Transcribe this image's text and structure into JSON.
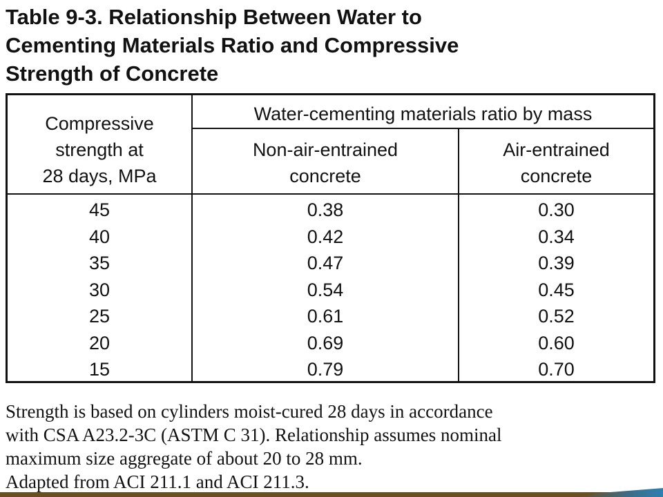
{
  "title": {
    "line1": "Table 9-3. Relationship Between Water to",
    "line2": "Cementing Materials Ratio and Compressive",
    "line3": "Strength of Concrete"
  },
  "table": {
    "col1_header": [
      "Compressive",
      "strength at",
      "28 days, MPa"
    ],
    "group_header": "Water-cementing materials ratio by mass",
    "col2_header": [
      "Non-air-entrained",
      "concrete"
    ],
    "col3_header": [
      "Air-entrained",
      "concrete"
    ],
    "rows": [
      {
        "strength": "45",
        "non_air": "0.38",
        "air": "0.30"
      },
      {
        "strength": "40",
        "non_air": "0.42",
        "air": "0.34"
      },
      {
        "strength": "35",
        "non_air": "0.47",
        "air": "0.39"
      },
      {
        "strength": "30",
        "non_air": "0.54",
        "air": "0.45"
      },
      {
        "strength": "25",
        "non_air": "0.61",
        "air": "0.52"
      },
      {
        "strength": "20",
        "non_air": "0.69",
        "air": "0.60"
      },
      {
        "strength": "15",
        "non_air": "0.79",
        "air": "0.70"
      }
    ]
  },
  "notes": {
    "line1": "Strength is based on cylinders moist-cured 28 days in accordance",
    "line2": "with CSA A23.2-3C (ASTM C 31). Relationship assumes nominal",
    "line3": "maximum size aggregate of about 20 to 28 mm.",
    "line4": "Adapted from ACI 211.1 and ACI 211.3."
  },
  "colors": {
    "text": "#111111",
    "footer_band": "#6b4f22",
    "footer_accent": "#2f7fb0"
  }
}
